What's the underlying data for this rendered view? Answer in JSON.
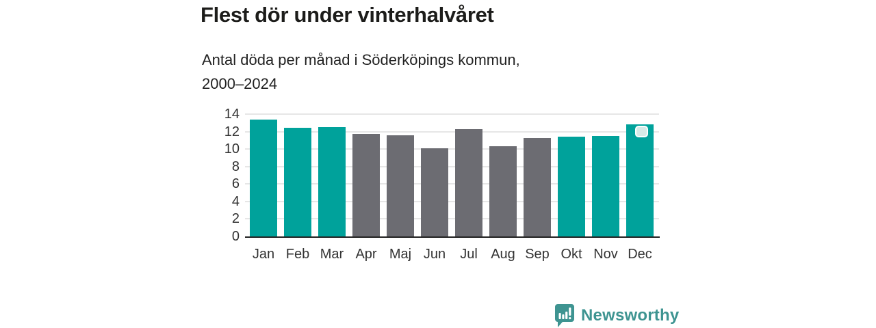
{
  "header": {
    "title": "Flest dör under vinterhalvåret",
    "subtitle_line1": "Antal döda per månad i Söderköpings kommun,",
    "subtitle_line2": "2000–2024"
  },
  "chart_data": {
    "type": "bar",
    "title": "Flest dör under vinterhalvåret",
    "subtitle": "Antal döda per månad i Söderköpings kommun, 2000–2024",
    "categories": [
      "Jan",
      "Feb",
      "Mar",
      "Apr",
      "Maj",
      "Jun",
      "Jul",
      "Aug",
      "Sep",
      "Okt",
      "Nov",
      "Dec"
    ],
    "values": [
      13.4,
      12.4,
      12.5,
      11.7,
      11.6,
      10.1,
      12.3,
      10.3,
      11.3,
      11.4,
      11.5,
      12.8
    ],
    "bar_color_keys": [
      "teal",
      "teal",
      "teal",
      "gray",
      "gray",
      "gray",
      "gray",
      "gray",
      "gray",
      "teal",
      "teal",
      "teal"
    ],
    "colors": {
      "teal": "#00A29B",
      "gray": "#6C6C72",
      "gridline": "#E6E6E6",
      "axis_line": "#222222",
      "tick_text": "#333333",
      "highlight_marker_fill": "#D6EAE7"
    },
    "y_ticks": [
      0,
      2,
      4,
      6,
      8,
      10,
      12,
      14
    ],
    "ylim": [
      0,
      14
    ],
    "xlabel": "",
    "ylabel": "",
    "grid": "horizontal",
    "legend": "none",
    "highlight": {
      "category": "Dec",
      "marker": "rounded-square-top"
    }
  },
  "footer": {
    "brand": "Newsworthy",
    "brand_color": "#3E9491"
  }
}
